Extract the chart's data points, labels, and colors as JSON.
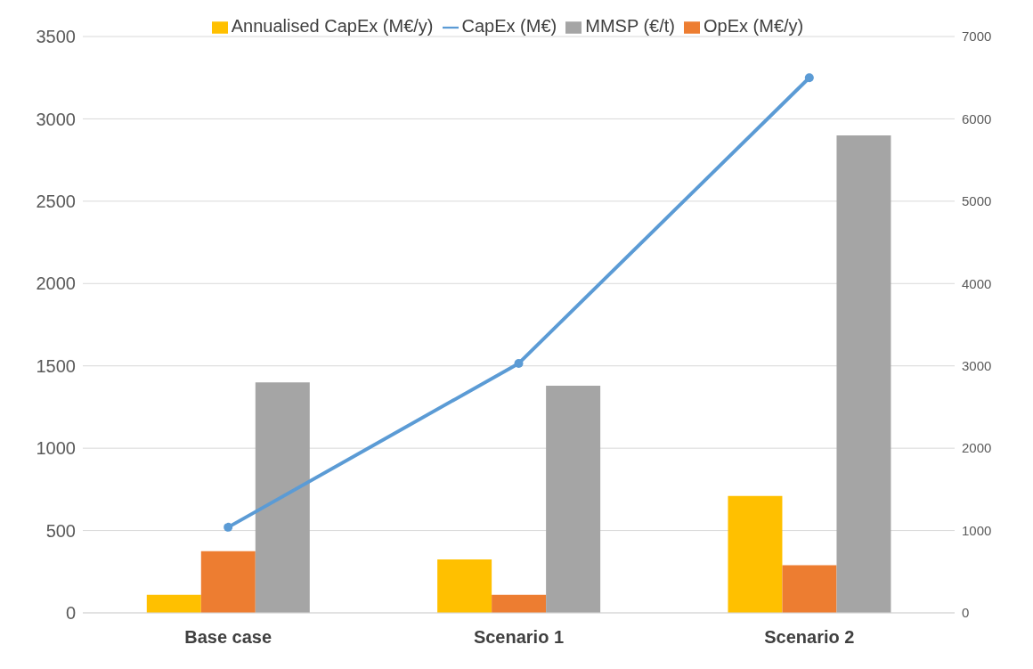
{
  "chart_data": {
    "type": "bar",
    "categories": [
      "Base case",
      "Scenario 1",
      "Scenario 2"
    ],
    "series": [
      {
        "name": "Annualised CapEx (M€/y)",
        "color": "#ffc000",
        "values": [
          110,
          325,
          710
        ]
      },
      {
        "name": "OpEx (M€/y)",
        "color": "#ed7d31",
        "values": [
          375,
          110,
          290
        ]
      },
      {
        "name": "MMSP (€/t)",
        "color": "#a5a5a5",
        "values": [
          1400,
          1380,
          2900
        ]
      },
      {
        "name": "CapEx (M€)",
        "color": "#5b9bd5",
        "values": [
          1040,
          3030,
          6500
        ],
        "type": "line",
        "axis": "y2"
      }
    ],
    "ylim": [
      0,
      3500
    ],
    "yticks": [
      0,
      500,
      1000,
      1500,
      2000,
      2500,
      3000,
      3500
    ],
    "y2lim": [
      0,
      7000
    ],
    "y2ticks": [
      0,
      1000,
      2000,
      3000,
      4000,
      5000,
      6000,
      7000
    ],
    "grid": "y",
    "legend": "top",
    "marker": "circle"
  }
}
